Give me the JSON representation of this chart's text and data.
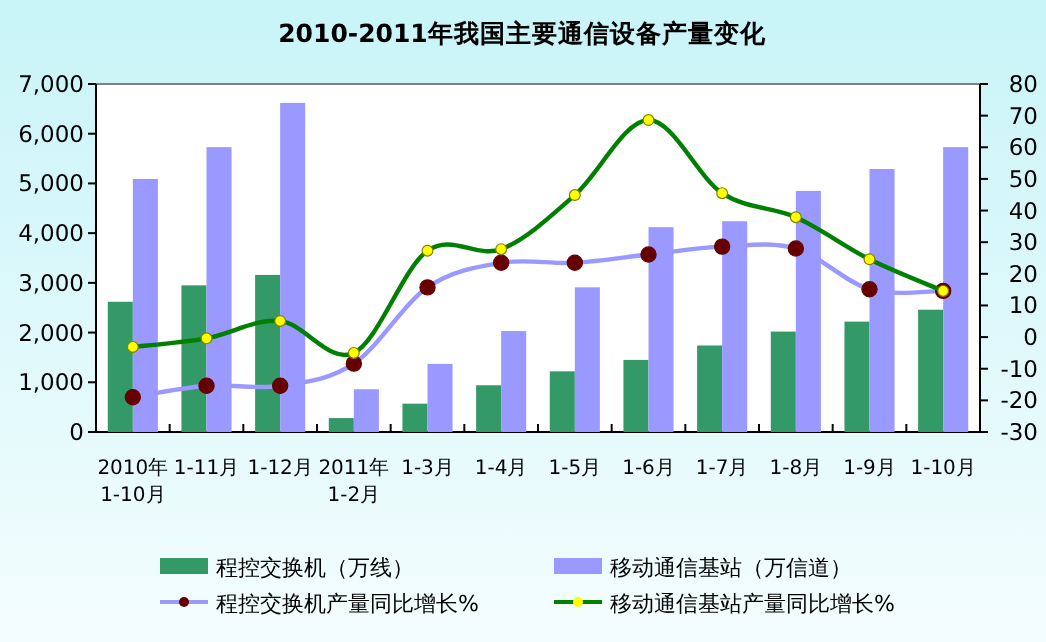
{
  "chart_data": {
    "type": "bar",
    "title": "2010-2011年我国主要通信设备产量变化",
    "categories": [
      "2010年\n1-10月",
      "1-11月",
      "1-12月",
      "2011年\n1-2月",
      "1-3月",
      "1-4月",
      "1-5月",
      "1-6月",
      "1-7月",
      "1-8月",
      "1-9月",
      "1-10月"
    ],
    "series": [
      {
        "name": "程控交换机（万线）",
        "color": "#339966",
        "values": [
          2620,
          2950,
          3160,
          280,
          570,
          940,
          1220,
          1450,
          1740,
          2020,
          2220,
          2460
        ]
      },
      {
        "name": "移动通信基站（万信道）",
        "color": "#9999ff",
        "values": [
          5090,
          5730,
          6620,
          860,
          1370,
          2030,
          2910,
          4120,
          4240,
          4850,
          5290,
          5730
        ]
      },
      {
        "name": "程控交换机产量同比增长%",
        "type": "line",
        "axis": "y2",
        "color": "#9999ff",
        "values": [
          -19,
          -15.4,
          -15.4,
          -8.4,
          15.7,
          23.5,
          23.5,
          26.1,
          28.6,
          28,
          15.1,
          14.6
        ]
      },
      {
        "name": "移动通信基站产量同比增长%",
        "type": "line",
        "axis": "y2",
        "color": "#008000",
        "values": [
          -3.1,
          -0.4,
          5.1,
          -5,
          27.3,
          27.8,
          44.9,
          68.6,
          45.5,
          37.9,
          24.6,
          14.6
        ]
      }
    ],
    "ylim": [
      0,
      7000
    ],
    "yticks": [
      0,
      {
        "value": 1000,
        "label": "1,000"
      },
      {
        "value": 2000,
        "label": "2,000"
      },
      {
        "value": 3000,
        "label": "3,000"
      },
      {
        "value": 4000,
        "label": "4,000"
      },
      {
        "value": 5000,
        "label": "5,000"
      },
      {
        "value": 6000,
        "label": "6,000"
      },
      {
        "value": 7000,
        "label": "7,000"
      }
    ],
    "y2lim": [
      -30,
      80
    ],
    "y2ticks": [
      -30,
      -20,
      -10,
      0,
      10,
      20,
      30,
      40,
      50,
      60,
      70,
      80
    ],
    "legend": "bottom",
    "grid": false,
    "marker": "circle",
    "line_style": "solid"
  }
}
